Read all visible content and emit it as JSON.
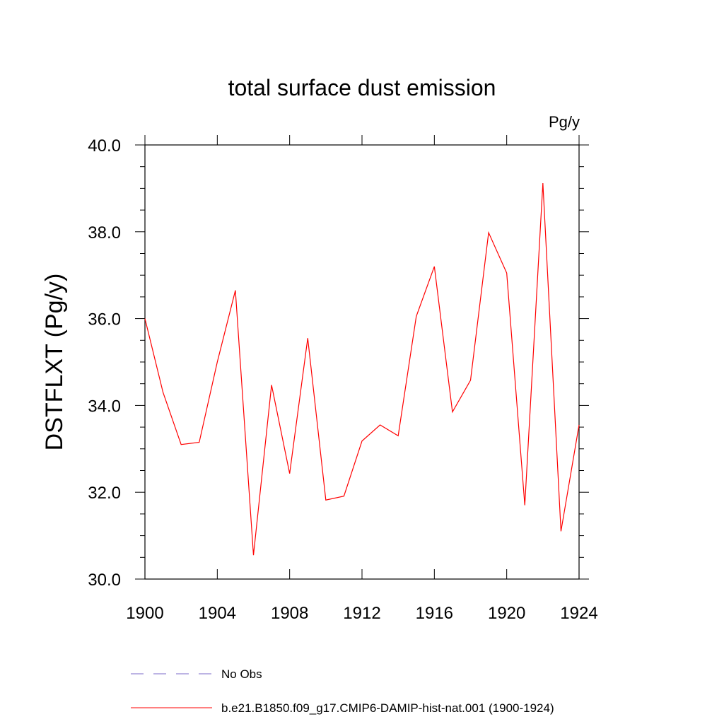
{
  "colors": {
    "model_line": "#ff0000",
    "obs_line": "#7b68c8",
    "axis": "#000000"
  },
  "chart_data": {
    "type": "line",
    "title": "total surface dust emission",
    "units": "Pg/y",
    "xlabel": "",
    "ylabel": "DSTFLXT  (Pg/y)",
    "xlim": [
      1900,
      1924
    ],
    "ylim": [
      30.0,
      40.0
    ],
    "x_ticks": [
      "1900",
      "1904",
      "1908",
      "1912",
      "1916",
      "1920",
      "1924"
    ],
    "y_ticks": [
      "30.0",
      "32.0",
      "34.0",
      "36.0",
      "38.0",
      "40.0"
    ],
    "x": [
      1900,
      1901,
      1902,
      1903,
      1904,
      1905,
      1906,
      1907,
      1908,
      1909,
      1910,
      1911,
      1912,
      1913,
      1914,
      1915,
      1916,
      1917,
      1918,
      1919,
      1920,
      1921,
      1922,
      1923,
      1924
    ],
    "series": [
      {
        "name": "b.e21.B1850.f09_g17.CMIP6-DAMIP-hist-nat.001 (1900-1924)",
        "values": [
          36.0,
          34.3,
          33.1,
          33.15,
          35.0,
          36.65,
          30.55,
          34.47,
          32.43,
          35.55,
          31.82,
          31.91,
          33.18,
          33.55,
          33.3,
          36.05,
          37.2,
          33.85,
          34.58,
          37.98,
          37.05,
          31.7,
          39.12,
          31.1,
          33.55
        ]
      }
    ],
    "legend": [
      {
        "label": "No Obs",
        "style": "dashed"
      },
      {
        "label": "b.e21.B1850.f09_g17.CMIP6-DAMIP-hist-nat.001 (1900-1924)",
        "style": "solid"
      }
    ],
    "grid": false,
    "legend_position": "bottom"
  }
}
